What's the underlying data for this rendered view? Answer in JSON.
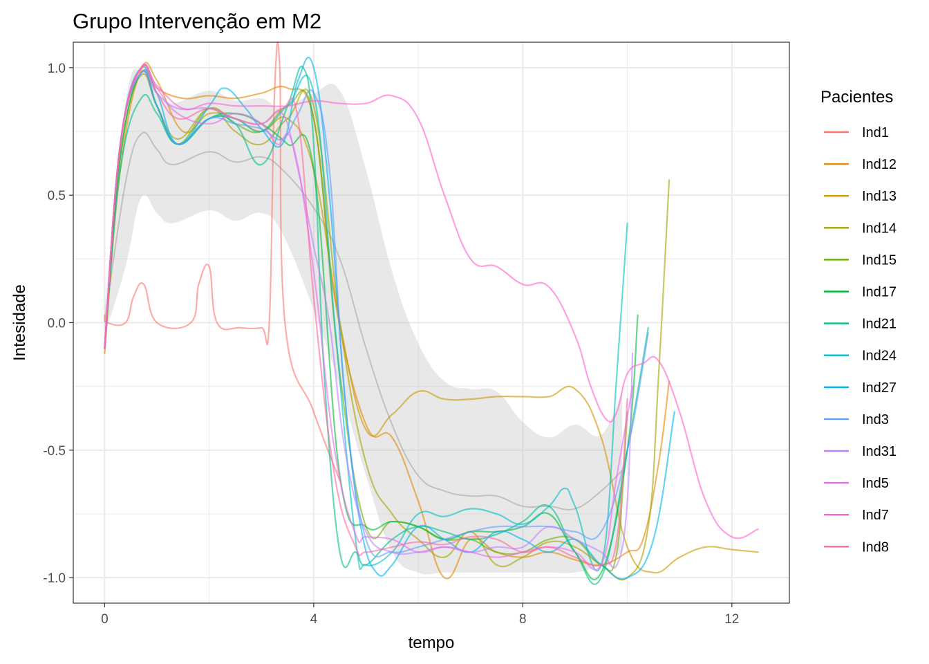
{
  "chart_data": {
    "type": "line",
    "title": "Grupo Intervenção em M2",
    "xlabel": "tempo",
    "ylabel": "Intesidade",
    "xlim": [
      -0.6,
      13.1
    ],
    "ylim": [
      -1.1,
      1.1
    ],
    "xticks": [
      0,
      4,
      8,
      12
    ],
    "yticks": [
      -1.0,
      -0.5,
      0.0,
      0.5,
      1.0
    ],
    "ytick_labels": [
      "-1.0",
      "-0.5",
      "0.0",
      "0.5",
      "1.0"
    ],
    "grid": true,
    "legend": {
      "title": "Pacientes",
      "position": "right"
    },
    "mean_band": {
      "x": [
        0,
        0.4,
        0.7,
        1.0,
        1.3,
        2.0,
        2.5,
        3.0,
        3.4,
        4.0,
        4.5,
        5.0,
        5.5,
        6.0,
        6.5,
        7.0,
        7.5,
        8.0,
        8.5,
        9.0,
        9.5,
        9.9
      ],
      "mean": [
        0,
        0.55,
        0.74,
        0.68,
        0.62,
        0.67,
        0.63,
        0.65,
        0.6,
        0.45,
        0.25,
        -0.1,
        -0.4,
        -0.6,
        -0.66,
        -0.68,
        -0.68,
        -0.72,
        -0.72,
        -0.73,
        -0.66,
        -0.58
      ],
      "lower": [
        -0.05,
        0.22,
        0.49,
        0.43,
        0.39,
        0.44,
        0.4,
        0.43,
        0.35,
        0.05,
        -0.25,
        -0.6,
        -0.9,
        -0.98,
        -0.98,
        -0.98,
        -0.98,
        -0.98,
        -0.98,
        -0.98,
        -0.95,
        -0.9
      ],
      "upper": [
        0.05,
        0.86,
        0.99,
        0.91,
        0.86,
        0.91,
        0.87,
        0.88,
        0.84,
        0.9,
        0.91,
        0.6,
        0.2,
        -0.08,
        -0.23,
        -0.26,
        -0.27,
        -0.39,
        -0.45,
        -0.4,
        -0.44,
        -0.27
      ]
    },
    "series": [
      {
        "name": "Ind1",
        "color": "#F8766D",
        "x": [
          0,
          0.05,
          0.4,
          0.55,
          0.75,
          1.0,
          1.65,
          1.8,
          2.0,
          2.15,
          2.6,
          3.0,
          3.15,
          3.25,
          3.35,
          3.45,
          4.0,
          4.5
        ],
        "y": [
          0.03,
          0.0,
          0.0,
          0.1,
          0.15,
          0.0,
          0.0,
          0.15,
          0.22,
          0.0,
          -0.02,
          -0.02,
          0.0,
          0.9,
          1.0,
          0.0,
          -0.35,
          -0.62
        ]
      },
      {
        "name": "Ind12",
        "color": "#E58700",
        "x": [
          0,
          0.3,
          0.7,
          1.0,
          1.5,
          2.0,
          2.5,
          3.0,
          3.5,
          4.0,
          4.4,
          5.0,
          5.5,
          6.0,
          6.5,
          7.0,
          7.5,
          8.0,
          8.5,
          9.0,
          9.5,
          10.0,
          10.3,
          10.6,
          10.8
        ],
        "y": [
          -0.12,
          0.6,
          0.99,
          0.92,
          0.88,
          0.89,
          0.88,
          0.9,
          0.92,
          0.8,
          0.1,
          -0.4,
          -0.45,
          -0.7,
          -1.0,
          -0.85,
          -0.9,
          -0.92,
          -0.9,
          -0.93,
          -0.95,
          -0.9,
          -0.85,
          -0.55,
          -0.23
        ]
      },
      {
        "name": "Ind13",
        "color": "#C99800",
        "x": [
          0,
          0.3,
          0.7,
          1.0,
          1.5,
          2.0,
          2.5,
          3.0,
          3.5,
          4.0,
          4.5,
          5.0,
          5.5,
          6.0,
          6.5,
          7.0,
          7.5,
          8.0,
          8.5,
          9.0,
          9.5,
          10.0,
          10.5,
          11.0,
          11.5,
          12.0,
          12.5
        ],
        "y": [
          -0.1,
          0.7,
          1.0,
          0.95,
          0.75,
          0.82,
          0.8,
          0.75,
          0.8,
          0.6,
          0.0,
          -0.42,
          -0.36,
          -0.27,
          -0.3,
          -0.3,
          -0.29,
          -0.29,
          -0.29,
          -0.26,
          -0.45,
          -0.88,
          -0.98,
          -0.92,
          -0.88,
          -0.89,
          -0.9
        ]
      },
      {
        "name": "Ind14",
        "color": "#A3A500",
        "x": [
          0,
          0.3,
          0.7,
          1.0,
          1.4,
          2.0,
          2.5,
          3.0,
          3.5,
          4.0,
          4.5,
          5.0,
          5.5,
          6.0,
          6.5,
          7.0,
          7.5,
          8.0,
          8.5,
          9.0,
          9.5,
          10.0,
          10.4,
          10.6,
          10.8
        ],
        "y": [
          -0.1,
          0.7,
          0.97,
          0.85,
          0.72,
          0.84,
          0.75,
          0.7,
          0.8,
          0.85,
          0.0,
          -0.55,
          -0.75,
          -0.85,
          -0.92,
          -0.82,
          -0.95,
          -0.92,
          -0.86,
          -0.88,
          -0.95,
          -1.0,
          -0.8,
          -0.2,
          0.56
        ]
      },
      {
        "name": "Ind15",
        "color": "#6BB100",
        "x": [
          0,
          0.3,
          0.7,
          1.0,
          1.4,
          2.0,
          2.5,
          3.0,
          3.5,
          4.0,
          4.5,
          5.0,
          5.5,
          6.0,
          6.5,
          7.0,
          7.5,
          8.0,
          8.5,
          9.0,
          9.5,
          9.8,
          10.0
        ],
        "y": [
          -0.1,
          0.65,
          0.98,
          0.85,
          0.7,
          0.84,
          0.78,
          0.75,
          0.85,
          0.8,
          -0.2,
          -0.8,
          -0.78,
          -0.8,
          -0.85,
          -0.85,
          -0.9,
          -0.9,
          -0.85,
          -0.85,
          -0.95,
          -0.9,
          -0.35
        ]
      },
      {
        "name": "Ind17",
        "color": "#00BA38",
        "x": [
          0,
          0.3,
          0.7,
          1.0,
          1.4,
          2.0,
          2.5,
          3.0,
          3.5,
          4.0,
          4.5,
          5.0,
          5.5,
          6.0,
          6.5,
          7.0,
          7.5,
          8.0,
          8.5,
          9.0,
          9.5,
          10.0,
          10.2
        ],
        "y": [
          -0.1,
          0.65,
          0.98,
          0.85,
          0.7,
          0.8,
          0.82,
          0.78,
          0.7,
          0.6,
          -0.6,
          -0.8,
          -0.78,
          -0.8,
          -0.85,
          -0.82,
          -0.82,
          -0.8,
          -0.75,
          -0.9,
          -0.98,
          -0.5,
          0.03
        ]
      },
      {
        "name": "Ind21",
        "color": "#00C08B",
        "x": [
          0,
          0.3,
          0.7,
          1.0,
          1.4,
          2.0,
          2.5,
          3.0,
          3.5,
          3.8,
          4.0,
          4.2,
          4.5,
          4.8,
          5.0,
          5.5,
          6.0,
          6.5,
          7.0,
          7.5,
          8.0,
          8.5,
          9.0,
          9.5,
          10.0,
          10.4
        ],
        "y": [
          -0.1,
          0.6,
          0.88,
          0.82,
          0.7,
          0.8,
          0.78,
          0.62,
          0.85,
          1.0,
          0.7,
          -0.2,
          -0.9,
          -0.9,
          -0.95,
          -0.85,
          -0.8,
          -0.82,
          -0.85,
          -0.83,
          -0.78,
          -0.72,
          -0.9,
          -1.0,
          -0.5,
          -0.02
        ]
      },
      {
        "name": "Ind24",
        "color": "#00BFC4",
        "x": [
          0,
          0.3,
          0.7,
          1.0,
          1.4,
          2.0,
          2.5,
          3.0,
          3.5,
          4.0,
          4.4,
          4.8,
          5.0,
          5.5,
          6.0,
          6.5,
          7.0,
          7.5,
          8.0,
          8.5,
          8.8,
          9.0,
          9.5,
          9.8,
          10.0
        ],
        "y": [
          -0.1,
          0.7,
          1.0,
          0.85,
          0.7,
          0.8,
          0.8,
          0.75,
          0.85,
          0.9,
          0.0,
          -0.85,
          -0.95,
          -0.9,
          -0.75,
          -0.76,
          -0.73,
          -0.75,
          -0.79,
          -0.72,
          -0.65,
          -0.72,
          -0.95,
          -0.2,
          0.39
        ]
      },
      {
        "name": "Ind27",
        "color": "#00B4F0",
        "x": [
          0,
          0.3,
          0.7,
          1.0,
          1.4,
          2.0,
          2.3,
          2.7,
          3.0,
          3.4,
          3.7,
          4.0,
          4.3,
          4.6,
          4.9,
          5.2,
          5.5,
          6.0,
          6.5,
          7.0,
          7.5,
          8.0,
          8.5,
          9.0,
          9.5,
          10.0,
          10.5,
          10.9
        ],
        "y": [
          -0.1,
          0.7,
          0.98,
          0.9,
          0.7,
          0.85,
          0.92,
          0.84,
          0.76,
          0.7,
          0.95,
          1.0,
          0.5,
          -0.3,
          -0.8,
          -0.98,
          -0.95,
          -0.8,
          -0.85,
          -0.9,
          -0.82,
          -0.85,
          -0.9,
          -0.85,
          -0.95,
          -1.0,
          -0.85,
          -0.35
        ]
      },
      {
        "name": "Ind3",
        "color": "#619CFF",
        "x": [
          0,
          0.3,
          0.7,
          1.0,
          1.4,
          2.0,
          2.5,
          3.0,
          3.4,
          3.7,
          4.0,
          4.3,
          4.6,
          5.0,
          5.5,
          6.0,
          6.5,
          7.0,
          7.5,
          8.0,
          8.5,
          9.0,
          9.5,
          10.0,
          10.4
        ],
        "y": [
          -0.1,
          0.7,
          0.98,
          0.85,
          0.7,
          0.8,
          0.78,
          0.76,
          0.72,
          0.82,
          0.9,
          0.6,
          -0.3,
          -0.85,
          -0.9,
          -0.88,
          -0.85,
          -0.82,
          -0.8,
          -0.8,
          -0.8,
          -0.82,
          -0.82,
          -0.5,
          -0.04
        ]
      },
      {
        "name": "Ind31",
        "color": "#B983FF",
        "x": [
          0,
          0.3,
          0.7,
          1.0,
          1.4,
          2.0,
          2.5,
          3.0,
          3.4,
          3.7,
          4.0,
          4.3,
          4.6,
          5.0,
          5.5,
          6.0,
          6.5,
          7.0,
          7.5,
          8.0,
          8.5,
          9.0,
          9.5,
          9.8,
          10.0,
          10.1
        ],
        "y": [
          -0.1,
          0.7,
          0.98,
          0.9,
          0.84,
          0.84,
          0.8,
          0.78,
          0.82,
          0.6,
          0.3,
          0.0,
          -0.5,
          -0.82,
          -0.9,
          -0.9,
          -0.88,
          -0.9,
          -0.88,
          -0.88,
          -0.8,
          -0.85,
          -0.9,
          -0.95,
          -0.7,
          -0.12
        ]
      },
      {
        "name": "Ind5",
        "color": "#E76BF3",
        "x": [
          0,
          0.3,
          0.7,
          1.0,
          1.4,
          2.0,
          2.5,
          3.0,
          3.3,
          3.6,
          4.0,
          4.4,
          4.8,
          5.0,
          5.5,
          6.0,
          6.5,
          7.0,
          7.5,
          8.0,
          8.5,
          9.0,
          9.5,
          9.8,
          10.1
        ],
        "y": [
          -0.1,
          0.7,
          1.0,
          0.92,
          0.82,
          0.78,
          0.82,
          0.78,
          0.7,
          0.7,
          0.2,
          -0.5,
          -0.83,
          -0.84,
          -0.85,
          -0.9,
          -0.88,
          -0.9,
          -0.92,
          -0.9,
          -0.88,
          -0.9,
          -0.95,
          -0.6,
          -0.25
        ]
      },
      {
        "name": "Ind7",
        "color": "#FD61D1",
        "x": [
          0,
          0.3,
          0.7,
          1.0,
          1.5,
          2.0,
          2.5,
          3.0,
          3.5,
          4.0,
          4.5,
          5.0,
          5.5,
          6.0,
          6.5,
          7.0,
          7.5,
          8.0,
          8.5,
          9.0,
          9.3,
          9.6,
          9.8,
          10.0,
          10.3,
          10.6,
          11.0,
          11.5,
          12.0,
          12.5
        ],
        "y": [
          -0.1,
          0.7,
          1.0,
          0.93,
          0.84,
          0.86,
          0.85,
          0.85,
          0.85,
          0.87,
          0.86,
          0.86,
          0.89,
          0.8,
          0.5,
          0.25,
          0.22,
          0.15,
          0.14,
          -0.05,
          -0.25,
          -0.38,
          -0.35,
          -0.2,
          -0.16,
          -0.15,
          -0.35,
          -0.7,
          -0.84,
          -0.81
        ]
      },
      {
        "name": "Ind8",
        "color": "#FF67A4",
        "x": [
          0,
          0.3,
          0.7,
          1.0,
          1.4,
          2.0,
          2.5,
          3.0,
          3.4,
          3.7,
          4.0,
          4.4,
          4.8,
          5.0,
          5.5,
          6.0,
          6.5,
          7.0,
          7.5,
          8.0,
          8.5,
          9.0,
          9.5,
          9.8,
          10.0
        ],
        "y": [
          -0.1,
          0.7,
          1.0,
          0.9,
          0.8,
          0.84,
          0.8,
          0.78,
          0.84,
          0.8,
          0.1,
          -0.6,
          -0.88,
          -0.9,
          -0.88,
          -0.86,
          -0.87,
          -0.84,
          -0.85,
          -0.9,
          -0.88,
          -0.92,
          -0.95,
          -0.85,
          -0.3
        ]
      }
    ]
  }
}
